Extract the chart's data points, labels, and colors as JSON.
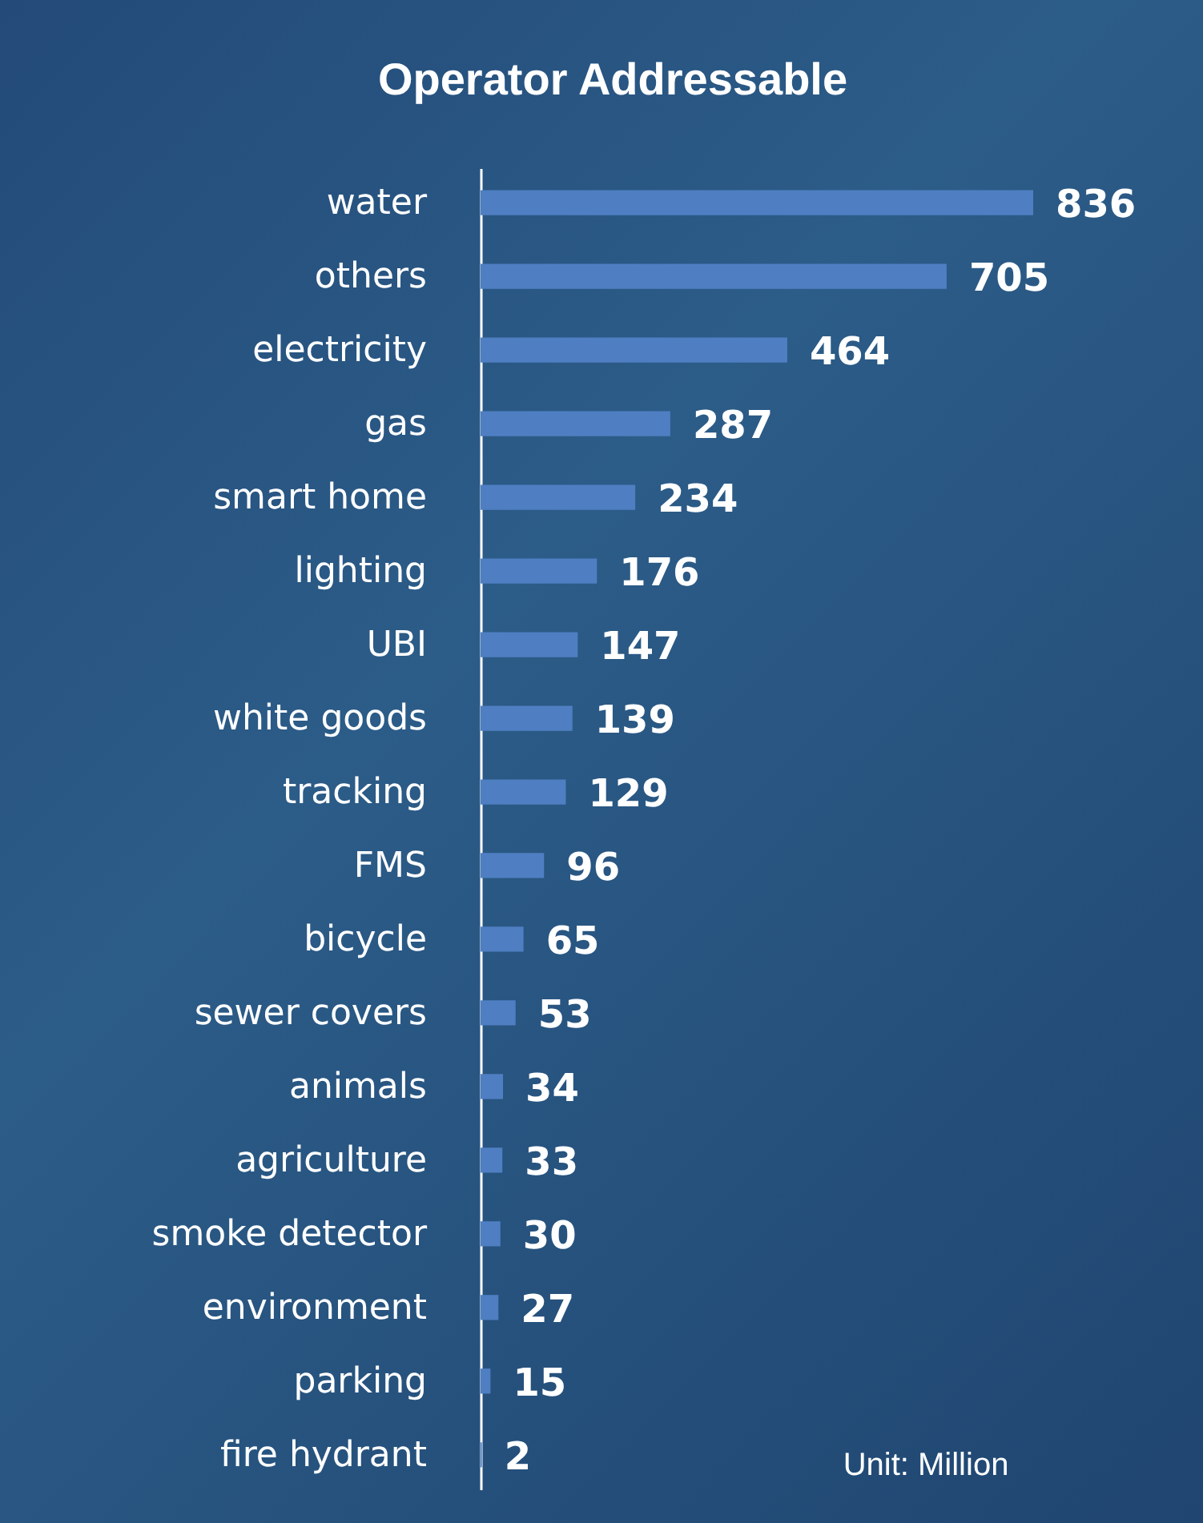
{
  "chart_data": {
    "type": "bar",
    "orientation": "horizontal",
    "title": "Operator Addressable",
    "categories": [
      "water",
      "others",
      "electricity",
      "gas",
      "smart home",
      "lighting",
      "UBI",
      "white goods",
      "tracking",
      "FMS",
      "bicycle",
      "sewer covers",
      "animals",
      "agriculture",
      "smoke detector",
      "environment",
      "parking",
      "fire hydrant"
    ],
    "values": [
      836,
      705,
      464,
      287,
      234,
      176,
      147,
      139,
      129,
      96,
      65,
      53,
      34,
      33,
      30,
      27,
      15,
      2
    ],
    "color": "#4f7fc2",
    "data_labels": true,
    "annotations": [
      "Unit: Million"
    ]
  }
}
